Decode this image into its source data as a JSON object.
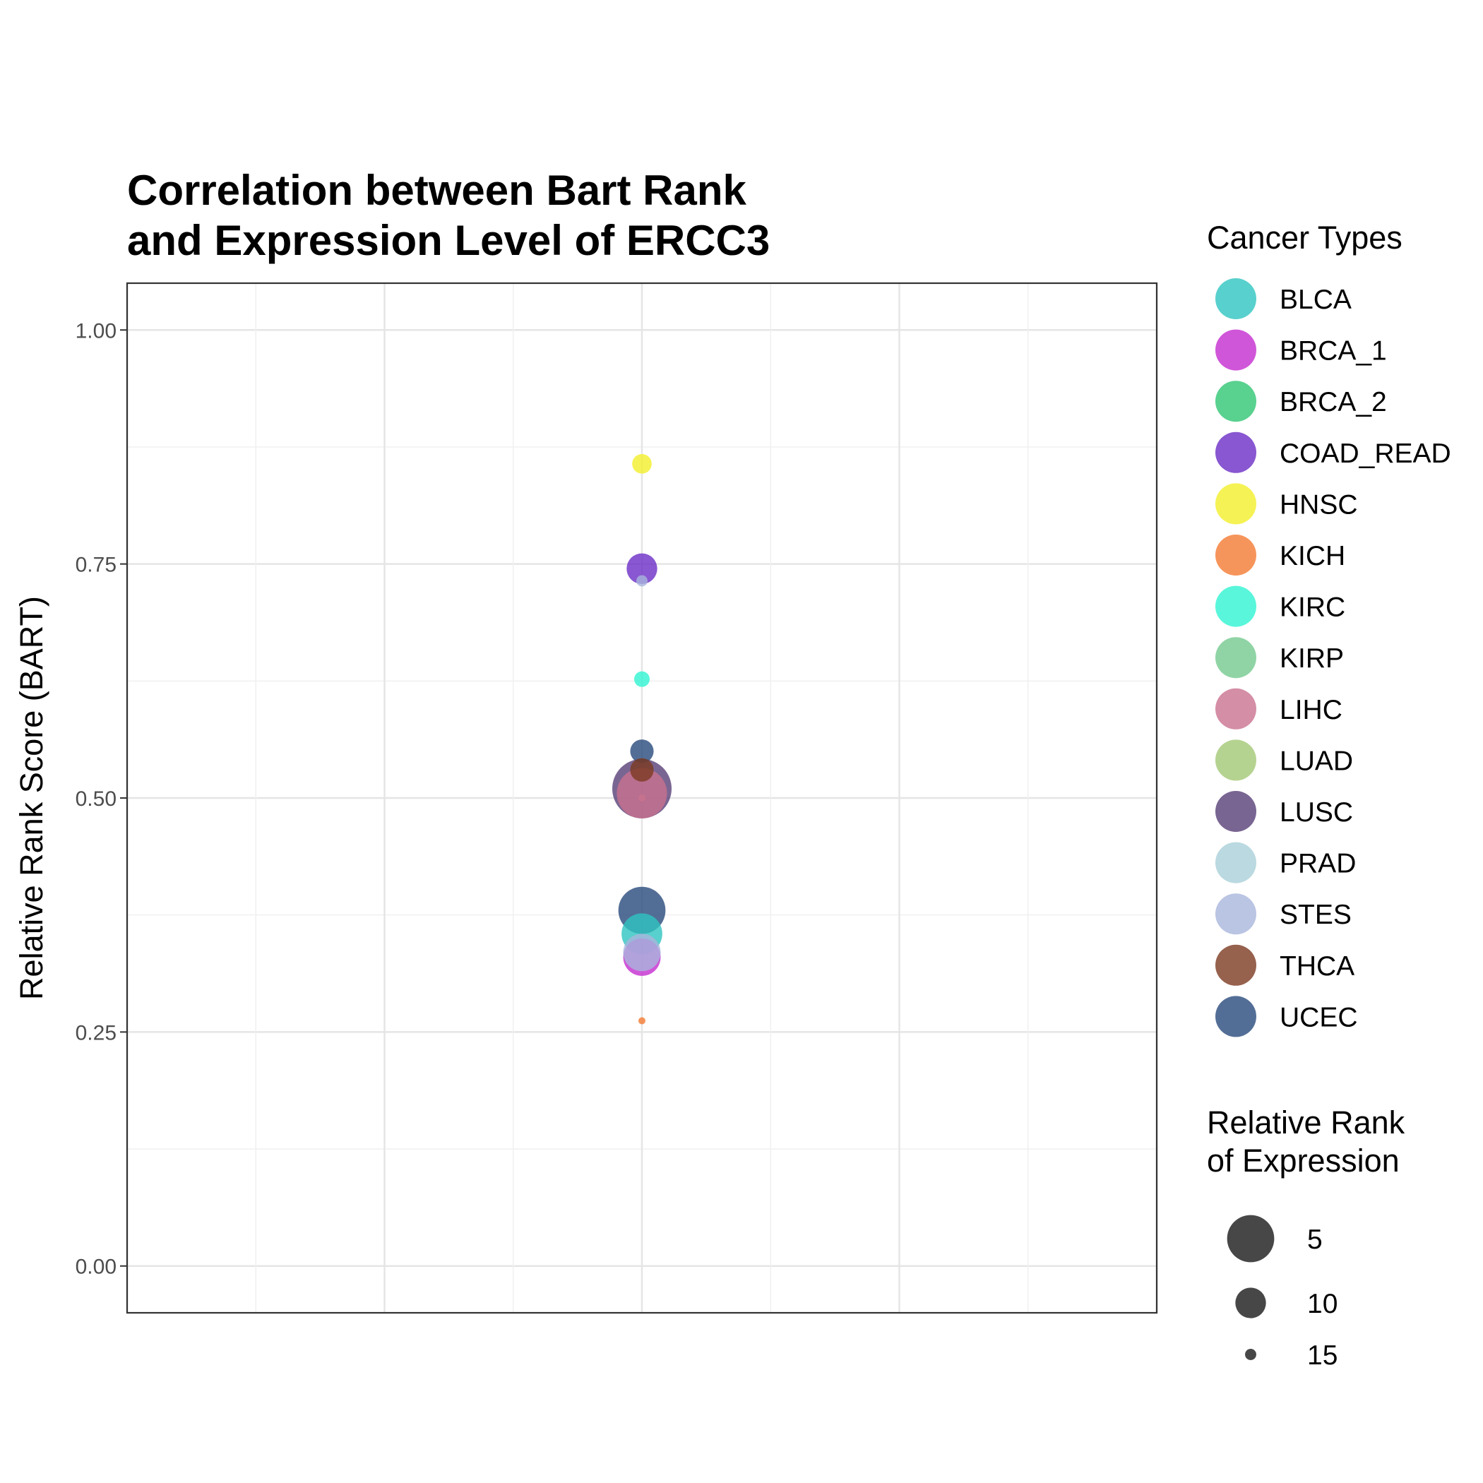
{
  "chart_data": {
    "type": "scatter",
    "title_lines": [
      "Correlation between Bart Rank",
      "and Expression Level of ERCC3"
    ],
    "ylabel": "Relative Rank Score (BART)",
    "xlabel": "",
    "ylim": [
      -0.05,
      1.05
    ],
    "xlim": [
      0,
      1
    ],
    "y_ticks": [
      0.0,
      0.25,
      0.5,
      0.75,
      1.0
    ],
    "y_tick_labels": [
      "0.00",
      "0.25",
      "0.50",
      "0.75",
      "1.00"
    ],
    "grid": true,
    "legend_position": "right",
    "color_legend": {
      "title": "Cancer Types",
      "entries": [
        {
          "label": "BLCA",
          "color": "#2ec4c0"
        },
        {
          "label": "BRCA_1",
          "color": "#c42ccf"
        },
        {
          "label": "BRCA_2",
          "color": "#2fc673"
        },
        {
          "label": "COAD_READ",
          "color": "#6c2dc6"
        },
        {
          "label": "HNSC",
          "color": "#f2ef2a"
        },
        {
          "label": "KICH",
          "color": "#f47b32"
        },
        {
          "label": "KIRC",
          "color": "#2ff4d2"
        },
        {
          "label": "KIRP",
          "color": "#74c98f"
        },
        {
          "label": "LIHC",
          "color": "#c9728f"
        },
        {
          "label": "LUAD",
          "color": "#a2c874"
        },
        {
          "label": "LUSC",
          "color": "#573f77"
        },
        {
          "label": "PRAD",
          "color": "#a9d0d8"
        },
        {
          "label": "STES",
          "color": "#a9b5dc"
        },
        {
          "label": "THCA",
          "color": "#7c3a20"
        },
        {
          "label": "UCEC",
          "color": "#284a7c"
        }
      ]
    },
    "size_legend": {
      "title_lines": [
        "Relative Rank",
        "of Expression"
      ],
      "entries": [
        {
          "label": "5",
          "value": 5
        },
        {
          "label": "10",
          "value": 10
        },
        {
          "label": "15",
          "value": 15
        }
      ]
    },
    "points": [
      {
        "series": "LUSC",
        "x": 0.5,
        "y": 0.51,
        "rank": 1
      },
      {
        "series": "LIHC",
        "x": 0.5,
        "y": 0.505,
        "rank": 4
      },
      {
        "series": "UCEC",
        "x": 0.5,
        "y": 0.38,
        "rank": 5
      },
      {
        "series": "BLCA",
        "x": 0.5,
        "y": 0.355,
        "rank": 7
      },
      {
        "series": "BRCA_1",
        "x": 0.5,
        "y": 0.33,
        "rank": 8
      },
      {
        "series": "STES",
        "x": 0.5,
        "y": 0.335,
        "rank": 8
      },
      {
        "series": "COAD_READ",
        "x": 0.5,
        "y": 0.745,
        "rank": 10
      },
      {
        "series": "UCEC",
        "x": 0.5,
        "y": 0.55,
        "rank": 12
      },
      {
        "series": "THCA",
        "x": 0.5,
        "y": 0.53,
        "rank": 12
      },
      {
        "series": "HNSC",
        "x": 0.5,
        "y": 0.857,
        "rank": 13
      },
      {
        "series": "KIRC",
        "x": 0.5,
        "y": 0.627,
        "rank": 14
      },
      {
        "series": "STES",
        "x": 0.5,
        "y": 0.732,
        "rank": 15
      },
      {
        "series": "KICH",
        "x": 0.5,
        "y": 0.262,
        "rank": 16
      },
      {
        "series": "LIHC",
        "x": 0.5,
        "y": 0.5,
        "rank": 17
      }
    ]
  }
}
